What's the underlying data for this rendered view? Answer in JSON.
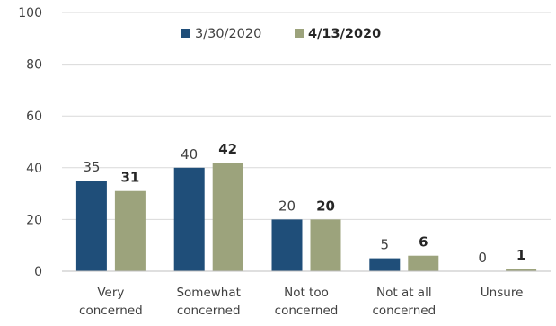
{
  "chart_data": {
    "type": "bar",
    "categories": [
      [
        "Very",
        "concerned"
      ],
      [
        "Somewhat",
        "concerned"
      ],
      [
        "Not too",
        "concerned"
      ],
      [
        "Not at all",
        "concerned"
      ],
      [
        "Unsure"
      ]
    ],
    "series": [
      {
        "name": "3/30/2020",
        "values": [
          35,
          40,
          20,
          5,
          0
        ],
        "color": "#1f4e79",
        "bold_labels": false
      },
      {
        "name": "4/13/2020",
        "values": [
          31,
          42,
          20,
          6,
          1
        ],
        "color": "#9ca37c",
        "bold_labels": true
      }
    ],
    "ylim": [
      0,
      100
    ],
    "yticks": [
      0,
      20,
      40,
      60,
      80,
      100
    ],
    "grid": true,
    "legend": "top-center",
    "title": "",
    "xlabel": "",
    "ylabel": ""
  }
}
